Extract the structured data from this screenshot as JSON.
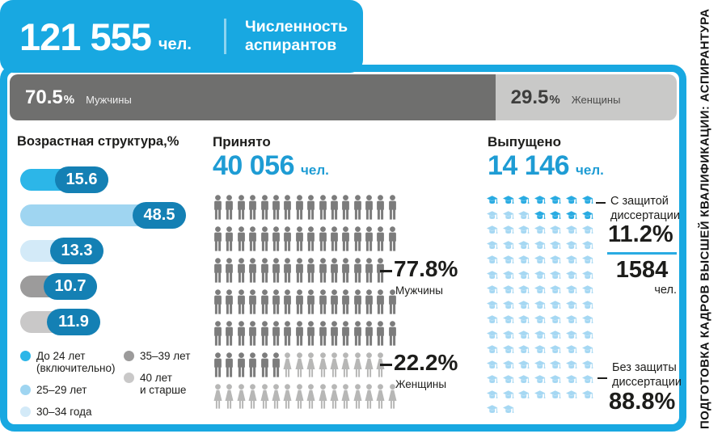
{
  "colors": {
    "frame_blue": "#18A8E1",
    "number_blue": "#1E9CD4",
    "pill_blue": "#1480B4",
    "age_bar_colors": [
      "#2CB6E8",
      "#9FD5F1",
      "#D3EAF8",
      "#9C9B9B",
      "#C9C8C8"
    ],
    "male_icon": "#7C7C7C",
    "female_icon": "#B7B7B6",
    "cap_dark": "#29ABE2",
    "cap_light": "#A6D8F3",
    "gender_male_bg": "#6F6F6E",
    "gender_female_bg": "#C9C9C8",
    "divider_cyan": "#29ABE2",
    "text_dark": "#1D1D1B"
  },
  "sidebar_title": "ПОДГОТОВКА КАДРОВ ВЫСШЕЙ КВАЛИФИКАЦИИ: АСПИРАНТУРА",
  "header": {
    "total_value": "121 555",
    "total_unit": "чел.",
    "title_line1": "Численность",
    "title_line2": "аспирантов"
  },
  "gender_bar": {
    "male_value": "70.5",
    "female_value": "29.5",
    "percent_sign": "%",
    "male_label": "Мужчины",
    "female_label": "Женщины",
    "male_pct": 70.5,
    "female_pct": 29.5
  },
  "age_structure": {
    "title": "Возрастная структура,%",
    "bars": [
      {
        "label": "15.6",
        "value": 15.6
      },
      {
        "label": "48.5",
        "value": 48.5
      },
      {
        "label": "13.3",
        "value": 13.3
      },
      {
        "label": "10.7",
        "value": 10.7
      },
      {
        "label": "11.9",
        "value": 11.9
      }
    ],
    "legend": [
      {
        "lines": [
          "До 24 лет",
          "(включительно)"
        ],
        "column": 1
      },
      {
        "lines": [
          "25–29 лет"
        ],
        "column": 1
      },
      {
        "lines": [
          "30–34 года"
        ],
        "column": 1
      },
      {
        "lines": [
          "35–39 лет"
        ],
        "column": 2
      },
      {
        "lines": [
          "40 лет",
          "и старше"
        ],
        "column": 2
      }
    ]
  },
  "admitted": {
    "title": "Принято",
    "value": "40 056",
    "unit": "чел.",
    "male_pct": "77.8%",
    "male_label": "Мужчины",
    "female_pct": "22.2%",
    "female_label": "Женщины",
    "pictogram": {
      "columns": 16,
      "rows": [
        {
          "male": 16,
          "female": 0
        },
        {
          "male": 16,
          "female": 0
        },
        {
          "male": 15,
          "female": 0
        },
        {
          "male": 16,
          "female": 0
        },
        {
          "male": 16,
          "female": 0
        },
        {
          "male": 6,
          "female": 9
        },
        {
          "male": 0,
          "female": 16
        }
      ]
    }
  },
  "graduated": {
    "title": "Выпущено",
    "value": "14 146",
    "unit": "чел.",
    "with_defense": {
      "label_lines": [
        "С защитой",
        "диссертации"
      ],
      "pct": "11.2%",
      "count": "1584",
      "count_unit": "чел."
    },
    "without_defense": {
      "label_lines": [
        "Без защиты",
        "диссертации"
      ],
      "pct": "88.8%"
    },
    "pictogram": {
      "columns": 7,
      "total": 100,
      "dark_indices": [
        0,
        1,
        2,
        3,
        4,
        5,
        6,
        10,
        11,
        12,
        13
      ]
    }
  },
  "chart_data": [
    {
      "type": "bar",
      "title": "Возрастная структура,%",
      "orientation": "horizontal",
      "categories": [
        "До 24 лет (включительно)",
        "25–29 лет",
        "30–34 года",
        "35–39 лет",
        "40 лет и старше"
      ],
      "values": [
        15.6,
        48.5,
        13.3,
        10.7,
        11.9
      ],
      "unit": "%"
    },
    {
      "type": "bar",
      "title": "Численность аспирантов",
      "total": "121 555 чел.",
      "categories": [
        "Мужчины",
        "Женщины"
      ],
      "values": [
        70.5,
        29.5
      ],
      "unit": "%"
    },
    {
      "type": "pictograph",
      "title": "Принято",
      "total": "40 056 чел.",
      "series": [
        {
          "name": "Мужчины",
          "value": 77.8
        },
        {
          "name": "Женщины",
          "value": 22.2
        }
      ],
      "unit": "%"
    },
    {
      "type": "pictograph",
      "title": "Выпущено",
      "total": "14 146 чел.",
      "series": [
        {
          "name": "С защитой диссертации",
          "value": 11.2,
          "count": "1584 чел."
        },
        {
          "name": "Без защиты диссертации",
          "value": 88.8
        }
      ],
      "unit": "%"
    }
  ]
}
